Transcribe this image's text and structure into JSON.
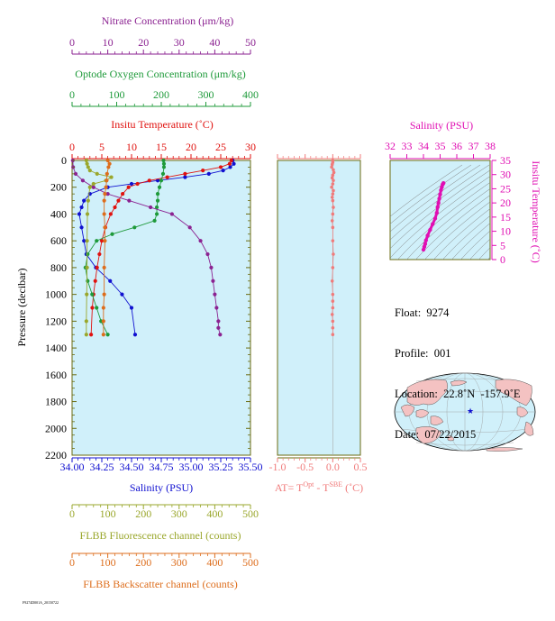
{
  "colors": {
    "nitrate": "#8b2291",
    "oxygen": "#1e9a3a",
    "temperature": "#e0120f",
    "salinity": "#1010d0",
    "fluorescence": "#9aa72c",
    "backscatter": "#dd6d1c",
    "dt": "#f07b7b",
    "ts": "#e00fb3",
    "panel_bg": "#d0f0fa",
    "frame": "#6b6b10"
  },
  "axes": {
    "nitrate_label": "Nitrate Concentration (μm/kg)",
    "oxygen_label": "Optode Oxygen Concentration (μm/kg)",
    "temperature_label": "Insitu Temperature (˚C)",
    "salinity_label": "Salinity (PSU)",
    "fluorescence_label": "FLBB Fluorescence channel (counts)",
    "backscatter_label": "FLBB Backscatter channel (counts)",
    "pressure_label": "Pressure (decibar)",
    "dt_label_main": "AT= T",
    "dt_sup1": "Opt",
    "dt_mid": " - T",
    "dt_sup2": "SBE",
    "dt_end": " (˚C)",
    "ts_salinity_label": "Salinity (PSU)",
    "ts_temperature_label": "Insitu Temperature (˚C)",
    "nitrate_ticks": [
      "0",
      "10",
      "20",
      "30",
      "40",
      "50"
    ],
    "oxygen_ticks": [
      "0",
      "100",
      "200",
      "300",
      "400"
    ],
    "temperature_ticks": [
      "0",
      "5",
      "10",
      "15",
      "20",
      "25",
      "30"
    ],
    "salinity_ticks": [
      "34.00",
      "34.25",
      "34.50",
      "34.75",
      "35.00",
      "35.25",
      "35.50"
    ],
    "fluorescence_ticks": [
      "0",
      "100",
      "200",
      "300",
      "400",
      "500"
    ],
    "backscatter_ticks": [
      "0",
      "100",
      "200",
      "300",
      "400",
      "500"
    ],
    "pressure_ticks": [
      "0",
      "200",
      "400",
      "600",
      "800",
      "1000",
      "1200",
      "1400",
      "1600",
      "1800",
      "2000",
      "2200"
    ],
    "dt_ticks": [
      "-1.0",
      "-0.5",
      "0.0",
      "0.5"
    ],
    "ts_salinity_ticks": [
      "32",
      "33",
      "34",
      "35",
      "36",
      "37",
      "38"
    ],
    "ts_temp_ticks": [
      "0",
      "5",
      "10",
      "15",
      "20",
      "25",
      "30",
      "35"
    ]
  },
  "info": {
    "float": "Float:  9274",
    "profile": "Profile:  001",
    "location": "Location:  22.8˚N  -157.9˚E",
    "date": "Date:  07/22/2015"
  },
  "footer": "F9274D001A_20150722",
  "chart_data": [
    {
      "type": "line",
      "title": "",
      "ylabel": "Pressure (decibar)",
      "ylim": [
        2200,
        0
      ],
      "series": [
        {
          "name": "Salinity (PSU)",
          "xlim": [
            34.0,
            35.5
          ],
          "x": [
            35.35,
            35.36,
            35.33,
            35.27,
            35.15,
            34.95,
            34.72,
            34.5,
            34.3,
            34.15,
            34.1,
            34.08,
            34.06,
            34.08,
            34.1,
            34.12,
            34.2,
            34.32,
            34.42,
            34.5,
            34.53
          ],
          "y": [
            0,
            25,
            50,
            75,
            100,
            125,
            150,
            175,
            200,
            250,
            300,
            350,
            400,
            500,
            600,
            700,
            800,
            900,
            1000,
            1100,
            1300
          ]
        },
        {
          "name": "Insitu Temperature (˚C)",
          "xlim": [
            0,
            30
          ],
          "x": [
            26.8,
            26.5,
            25,
            22,
            19,
            16,
            13,
            11,
            9.5,
            8.5,
            7.8,
            7.2,
            6.5,
            5.6,
            5.0,
            4.6,
            4.2,
            3.9,
            3.6,
            3.4,
            3.2
          ],
          "y": [
            0,
            25,
            50,
            75,
            100,
            125,
            150,
            175,
            200,
            250,
            300,
            350,
            400,
            500,
            600,
            700,
            800,
            900,
            1000,
            1100,
            1300
          ]
        },
        {
          "name": "Optode Oxygen Concentration (μm/kg)",
          "xlim": [
            0,
            400
          ],
          "x": [
            205,
            206,
            206,
            204,
            200,
            196,
            192,
            192,
            190,
            190,
            185,
            140,
            90,
            55,
            35,
            30,
            35,
            45,
            55,
            65,
            80
          ],
          "y": [
            0,
            25,
            50,
            100,
            150,
            200,
            250,
            300,
            350,
            400,
            450,
            500,
            550,
            600,
            700,
            800,
            900,
            1000,
            1100,
            1200,
            1300
          ]
        },
        {
          "name": "Nitrate Concentration (μm/kg)",
          "xlim": [
            0,
            50
          ],
          "x": [
            0.2,
            0.3,
            1.0,
            3,
            6,
            10,
            16,
            22,
            28,
            33,
            36,
            38,
            39,
            39.5,
            40,
            40.5,
            41,
            41,
            41.5
          ],
          "y": [
            0,
            50,
            100,
            150,
            200,
            250,
            300,
            350,
            400,
            500,
            600,
            700,
            800,
            900,
            1000,
            1100,
            1200,
            1250,
            1300
          ]
        },
        {
          "name": "FLBB Fluorescence channel (counts)",
          "xlim": [
            0,
            500
          ],
          "x": [
            40,
            42,
            45,
            50,
            70,
            110,
            95,
            60,
            50,
            45,
            43,
            42,
            42,
            41,
            40,
            40
          ],
          "y": [
            0,
            25,
            50,
            75,
            100,
            125,
            150,
            175,
            200,
            300,
            400,
            600,
            800,
            1000,
            1200,
            1300
          ]
        },
        {
          "name": "FLBB Backscatter channel (counts)",
          "xlim": [
            0,
            500
          ],
          "x": [
            100,
            105,
            102,
            98,
            97,
            95,
            92,
            90,
            90,
            92,
            92,
            90,
            90,
            88,
            88,
            88
          ],
          "y": [
            0,
            25,
            50,
            100,
            150,
            200,
            250,
            300,
            400,
            500,
            600,
            800,
            1000,
            1100,
            1200,
            1300
          ]
        }
      ]
    },
    {
      "type": "scatter",
      "title": "",
      "xlabel": "AT= T Opt - T SBE (˚C)",
      "xlim": [
        -1.0,
        0.5
      ],
      "ylim": [
        2200,
        0
      ],
      "x": [
        0.0,
        0.0,
        -0.01,
        -0.02,
        0.01,
        0.02,
        0.0,
        -0.01,
        0.01,
        0.0,
        -0.02,
        0.01,
        0.0,
        -0.01,
        0.0,
        0.01,
        0.0,
        -0.01,
        0.0,
        0.0,
        0.01,
        0.0,
        -0.01,
        0.0,
        0.0,
        0.0,
        -0.01,
        0.0,
        0.0,
        0.0
      ],
      "y": [
        0,
        15,
        30,
        50,
        70,
        90,
        110,
        130,
        150,
        175,
        200,
        225,
        250,
        275,
        300,
        350,
        400,
        450,
        500,
        600,
        700,
        800,
        900,
        1000,
        1050,
        1100,
        1150,
        1200,
        1250,
        1300
      ]
    },
    {
      "type": "line",
      "title": "",
      "xlabel": "Salinity (PSU)",
      "ylabel": "Insitu Temperature (˚C)",
      "xlim": [
        32,
        38
      ],
      "ylim": [
        0,
        35
      ],
      "x": [
        34.0,
        34.05,
        34.1,
        34.15,
        34.25,
        34.4,
        34.55,
        34.7,
        34.8,
        34.85,
        34.9,
        34.95,
        35.0,
        35.05,
        35.1,
        35.15,
        35.2
      ],
      "y": [
        3.5,
        4.5,
        5.5,
        6.8,
        8.5,
        10.5,
        12.5,
        14.5,
        16.5,
        18.5,
        20,
        21.5,
        23,
        24.5,
        25.5,
        26.5,
        27
      ]
    }
  ]
}
